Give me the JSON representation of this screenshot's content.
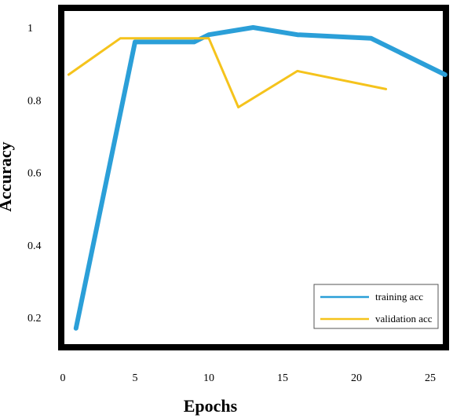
{
  "chart_data": {
    "type": "line",
    "xlabel": "Epochs",
    "ylabel": "Accuracy",
    "xlim": [
      0,
      26
    ],
    "ylim": [
      0.15,
      1.05
    ],
    "x_ticks": [
      "0",
      "5",
      "10",
      "15",
      "20",
      "25"
    ],
    "y_ticks": [
      "0.2",
      "0.4",
      "0.6",
      "0.8",
      "1"
    ],
    "grid": false,
    "legend_position": "bottom-right",
    "series": [
      {
        "name": "training acc",
        "color": "#2b9fd8",
        "x": [
          1,
          5,
          9,
          10,
          13,
          16,
          21,
          26
        ],
        "y": [
          0.17,
          0.96,
          0.96,
          0.98,
          1.0,
          0.98,
          0.97,
          0.87
        ]
      },
      {
        "name": "validation acc",
        "color": "#f5c31c",
        "x": [
          0.5,
          4,
          10,
          12,
          16,
          22
        ],
        "y": [
          0.87,
          0.97,
          0.97,
          0.78,
          0.88,
          0.83
        ]
      }
    ]
  }
}
